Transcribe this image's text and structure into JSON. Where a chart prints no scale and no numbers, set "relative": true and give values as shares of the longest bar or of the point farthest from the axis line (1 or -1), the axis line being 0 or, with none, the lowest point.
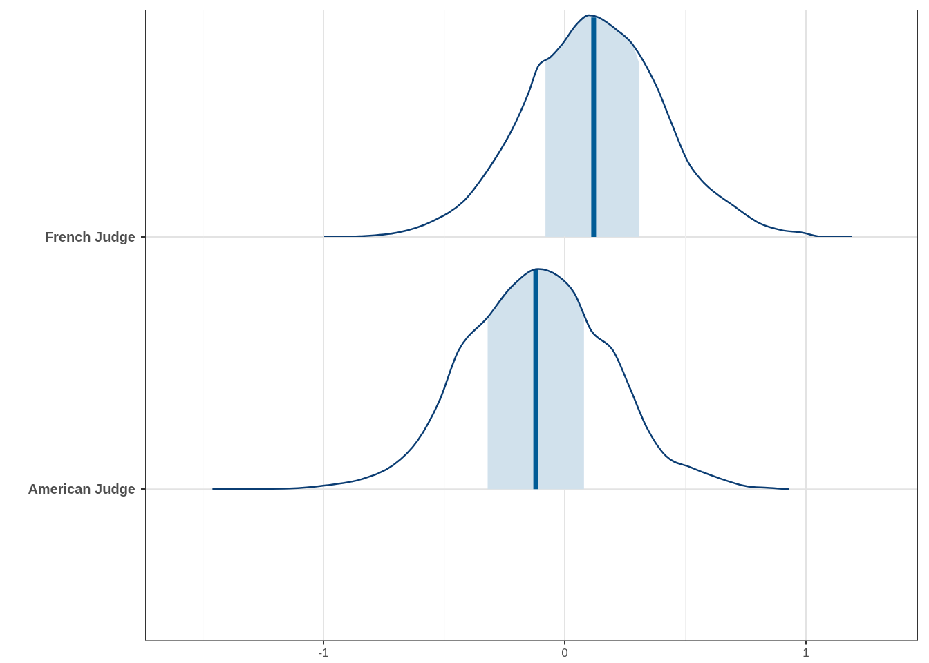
{
  "chart_data": [
    {
      "type": "line",
      "relative": true,
      "grid": "x",
      "legend": false,
      "tick_labels": false,
      "ylabel": "French Judge",
      "xlim": [
        -1.739,
        1.464
      ],
      "xticks": [
        {
          "value": -1.5,
          "label": null
        },
        -1,
        {
          "value": -0.5,
          "label": null
        },
        0,
        {
          "value": 0.5,
          "label": null
        },
        1
      ],
      "series": [
        {
          "color": "#0b3d73",
          "x": [
            -1.0,
            -0.85,
            -0.69,
            -0.55,
            -0.42,
            -0.32,
            -0.22,
            -0.15,
            -0.11,
            -0.06,
            -0.01,
            0.05,
            0.1,
            0.14,
            0.22,
            0.28,
            0.38,
            0.44,
            0.51,
            0.58,
            0.7,
            0.81,
            0.9,
            0.98,
            1.07,
            1.19
          ],
          "values": [
            0,
            0.003,
            0.02,
            0.07,
            0.16,
            0.3,
            0.48,
            0.65,
            0.77,
            0.81,
            0.87,
            0.96,
            1,
            0.99,
            0.93,
            0.87,
            0.68,
            0.52,
            0.34,
            0.24,
            0.14,
            0.06,
            0.03,
            0.02,
            0,
            0
          ]
        },
        {
          "type": "area",
          "color": "#d1e1ec",
          "x": [
            -0.08,
            -0.06,
            -0.01,
            0.05,
            0.1,
            0.14,
            0.22,
            0.28,
            0.31
          ],
          "values": [
            0.79,
            0.81,
            0.87,
            0.96,
            1,
            0.99,
            0.93,
            0.87,
            0.78
          ]
        },
        {
          "type": "line",
          "color": "#005b96",
          "x": [
            0.12,
            0.12
          ],
          "values": [
            0,
            0.99
          ]
        }
      ]
    },
    {
      "type": "line",
      "relative": true,
      "grid": "x",
      "legend": false,
      "tick_labels": "x",
      "ylabel": "American Judge",
      "xlim": [
        -1.739,
        1.464
      ],
      "xticks": [
        {
          "value": -1.5,
          "label": null
        },
        -1,
        {
          "value": -0.5,
          "label": null
        },
        0,
        {
          "value": 0.5,
          "label": null
        },
        1
      ],
      "series": [
        {
          "color": "#0b3d73",
          "x": [
            -1.46,
            -1.14,
            -0.99,
            -0.84,
            -0.71,
            -0.61,
            -0.52,
            -0.44,
            -0.32,
            -0.22,
            -0.11,
            -0.03,
            0.04,
            0.11,
            0.2,
            0.27,
            0.34,
            0.42,
            0.52,
            0.64,
            0.75,
            0.84,
            0.93
          ],
          "values": [
            0,
            0.003,
            0.017,
            0.046,
            0.11,
            0.22,
            0.4,
            0.63,
            0.78,
            0.92,
            1,
            0.97,
            0.89,
            0.72,
            0.63,
            0.46,
            0.28,
            0.15,
            0.1,
            0.05,
            0.014,
            0.006,
            0
          ]
        },
        {
          "type": "area",
          "color": "#d1e1ec",
          "x": [
            -0.32,
            -0.22,
            -0.11,
            -0.03,
            0.04,
            0.08
          ],
          "values": [
            0.78,
            0.92,
            1,
            0.97,
            0.89,
            0.79
          ]
        },
        {
          "type": "line",
          "color": "#005b96",
          "x": [
            -0.12,
            -0.12
          ],
          "values": [
            0,
            1
          ]
        }
      ]
    }
  ]
}
